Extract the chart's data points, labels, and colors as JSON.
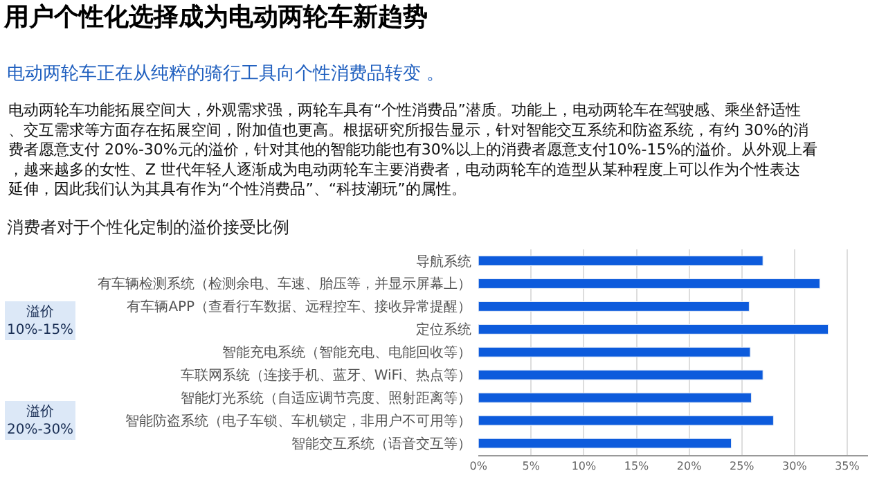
{
  "chart_data": {
    "type": "bar",
    "orientation": "horizontal",
    "title": "用户个性化选择成为电动两轮车新趋势",
    "subtitle": "电动两轮车正在从纯粹的骑行工具向个性消费品转变 。",
    "annotations": [
      "电动两轮车功能拓展空间大，外观需求强，两轮车具有“个性消费品”潜质。功能上，电动两轮车在驾驶感、乘坐舒适性、交互需求等方面存在拓展空间，附加值也更高。根据研究所报告显示，针对智能交互系统和防盗系统，有约 30%的消费者愿意支付 20%-30%元的溢价，针对其他的智能功能也有30%以上的消费者愿意支付10%-15%的溢价。从外观上看，越来越多的女性、Z 世代年轻人逐渐成为电动两轮车主要消费者，电动两轮车的造型从某种程度上可以作为个性表达延伸，因此我们认为其具有作为“个性消费品”、“科技潮玩”的属性。",
      "消费者对于个性化定制的溢价接受比例",
      "溢价\n10%-15%",
      "溢价\n20%-30%"
    ],
    "categories": [
      "导航系统",
      "有车辆检测系统（检测余电、车速、胎压等，并显示屏幕上）",
      "有车辆APP（查看行车数据、远程控车、接收异常提醒）",
      "定位系统",
      "智能充电系统（智能充电、电能回收等）",
      "车联网系统（连接手机、蓝牙、WiFi、热点等）",
      "智能灯光系统（自适应调节亮度、照射距离等）",
      "智能防盗系统（电子车锁、车机锁定，非用户不可用等）",
      "智能交互系统（语音交互等）"
    ],
    "values": [
      27.0,
      32.4,
      25.7,
      33.2,
      25.8,
      27.0,
      25.9,
      28.0,
      24.0
    ],
    "color": "#0d5bdc",
    "xlim": [
      0,
      37
    ],
    "xticks": [
      {
        "value": 0,
        "label": "0%"
      },
      {
        "value": 5,
        "label": "5%"
      },
      {
        "value": 10,
        "label": "10%"
      },
      {
        "value": 15,
        "label": "15%"
      },
      {
        "value": 20,
        "label": "20%"
      },
      {
        "value": 25,
        "label": "25%"
      },
      {
        "value": 30,
        "label": "30%"
      },
      {
        "value": 35,
        "label": "35%"
      }
    ],
    "grid": "x",
    "legend": false
  }
}
